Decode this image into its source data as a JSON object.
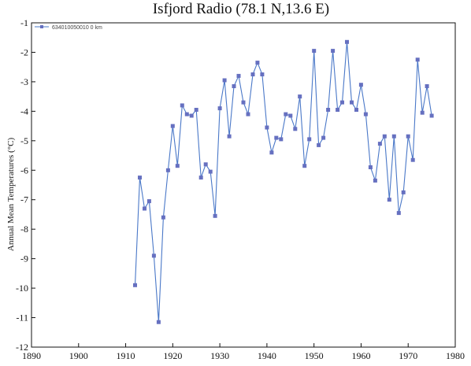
{
  "chart_data": {
    "type": "line",
    "title": "Isfjord Radio (78.1 N,13.6 E)",
    "xlabel": "",
    "ylabel": "Annual Mean Temperatures (°C)",
    "xlim": [
      1890,
      1980
    ],
    "ylim": [
      -12,
      -1
    ],
    "x_ticks": [
      1890,
      1900,
      1910,
      1920,
      1930,
      1940,
      1950,
      1960,
      1970,
      1980
    ],
    "y_ticks": [
      -1,
      -2,
      -3,
      -4,
      -5,
      -6,
      -7,
      -8,
      -9,
      -10,
      -11,
      -12
    ],
    "grid": false,
    "legend_position": "top-left",
    "series_color": "#4a78c8",
    "marker_color": "#6670c0",
    "series": [
      {
        "name": "634010050010 0 km",
        "x": [
          1912,
          1913,
          1914,
          1915,
          1916,
          1917,
          1918,
          1919,
          1920,
          1921,
          1922,
          1923,
          1924,
          1925,
          1926,
          1927,
          1928,
          1929,
          1930,
          1931,
          1932,
          1933,
          1934,
          1935,
          1936,
          1937,
          1938,
          1939,
          1940,
          1941,
          1942,
          1943,
          1944,
          1945,
          1946,
          1947,
          1948,
          1949,
          1950,
          1951,
          1952,
          1953,
          1954,
          1955,
          1956,
          1957,
          1958,
          1959,
          1960,
          1961,
          1962,
          1963,
          1964,
          1965,
          1966,
          1967,
          1968,
          1969,
          1970,
          1971,
          1972,
          1973,
          1974,
          1975
        ],
        "y": [
          -9.9,
          -6.25,
          -7.3,
          -7.05,
          -8.9,
          -11.15,
          -7.6,
          -6.0,
          -4.5,
          -5.85,
          -3.8,
          -4.1,
          -4.15,
          -3.95,
          -6.25,
          -5.8,
          -6.05,
          -7.55,
          -3.9,
          -2.95,
          -4.85,
          -3.15,
          -2.8,
          -3.7,
          -4.1,
          -2.75,
          -2.35,
          -2.75,
          -4.55,
          -5.4,
          -4.9,
          -4.95,
          -4.1,
          -4.15,
          -4.6,
          -3.5,
          -5.85,
          -4.95,
          -1.95,
          -5.15,
          -4.9,
          -3.95,
          -1.95,
          -3.95,
          -3.7,
          -1.65,
          -3.7,
          -3.95,
          -3.1,
          -4.1,
          -5.9,
          -6.35,
          -5.1,
          -4.85,
          -7.0,
          -4.85,
          -7.45,
          -6.75,
          -4.85,
          -5.65,
          -2.25,
          -4.05,
          -3.15,
          -4.15
        ]
      }
    ]
  }
}
